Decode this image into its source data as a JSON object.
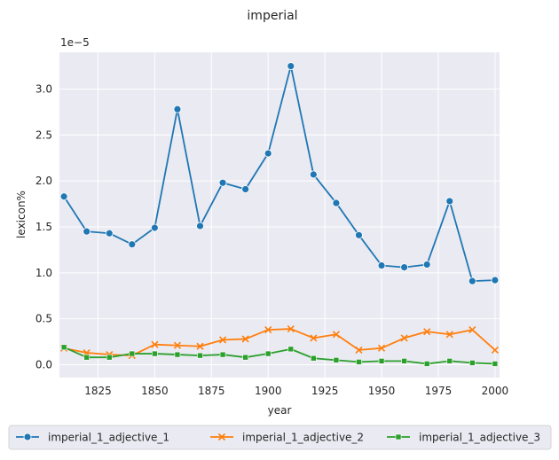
{
  "chart_data": {
    "type": "line",
    "title": "imperial",
    "xlabel": "year",
    "ylabel": "lexicon%",
    "y_scale_label": "1e−5",
    "xlim": [
      1808,
      2002
    ],
    "ylim": [
      -0.14,
      3.4
    ],
    "x_ticks": [
      1825,
      1850,
      1875,
      1900,
      1925,
      1950,
      1975,
      2000
    ],
    "y_ticks": [
      0.0,
      0.5,
      1.0,
      1.5,
      2.0,
      2.5,
      3.0
    ],
    "x": [
      1810,
      1820,
      1830,
      1840,
      1850,
      1860,
      1870,
      1880,
      1890,
      1900,
      1910,
      1920,
      1930,
      1940,
      1950,
      1960,
      1970,
      1980,
      1990,
      2000
    ],
    "series": [
      {
        "name": "imperial_1_adjective_1",
        "color": "#1f77b4",
        "marker": "circle",
        "values": [
          1.83,
          1.45,
          1.43,
          1.31,
          1.49,
          2.78,
          1.51,
          1.98,
          1.91,
          2.3,
          3.25,
          2.07,
          1.76,
          1.41,
          1.08,
          1.06,
          1.09,
          1.78,
          0.91,
          0.92
        ]
      },
      {
        "name": "imperial_1_adjective_2",
        "color": "#ff7f0e",
        "marker": "x",
        "values": [
          0.18,
          0.13,
          0.11,
          0.1,
          0.22,
          0.21,
          0.2,
          0.27,
          0.28,
          0.38,
          0.39,
          0.29,
          0.33,
          0.16,
          0.18,
          0.29,
          0.36,
          0.33,
          0.38,
          0.16
        ]
      },
      {
        "name": "imperial_1_adjective_3",
        "color": "#2ca02c",
        "marker": "square",
        "values": [
          0.19,
          0.08,
          0.08,
          0.12,
          0.12,
          0.11,
          0.1,
          0.11,
          0.08,
          0.12,
          0.17,
          0.07,
          0.05,
          0.03,
          0.04,
          0.04,
          0.01,
          0.04,
          0.02,
          0.01
        ]
      }
    ],
    "grid": true,
    "legend_position": "bottom"
  }
}
